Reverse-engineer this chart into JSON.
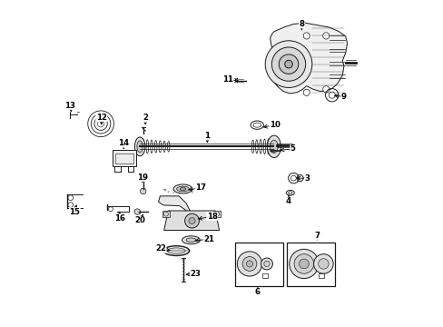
{
  "background_color": "#ffffff",
  "line_color": "#1a1a1a",
  "figsize": [
    4.89,
    3.6
  ],
  "dpi": 100,
  "labels": [
    {
      "id": "1",
      "pt": [
        0.455,
        0.445
      ],
      "txt": [
        0.455,
        0.415
      ]
    },
    {
      "id": "2",
      "pt": [
        0.265,
        0.39
      ],
      "txt": [
        0.265,
        0.36
      ]
    },
    {
      "id": "3",
      "pt": [
        0.72,
        0.545
      ],
      "txt": [
        0.762,
        0.545
      ]
    },
    {
      "id": "4",
      "pt": [
        0.705,
        0.588
      ],
      "txt": [
        0.705,
        0.616
      ]
    },
    {
      "id": "5",
      "pt": [
        0.67,
        0.46
      ],
      "txt": [
        0.718,
        0.455
      ]
    },
    {
      "id": "6",
      "pt": [
        0.61,
        0.87
      ],
      "txt": [
        0.61,
        0.895
      ]
    },
    {
      "id": "7",
      "pt": [
        0.792,
        0.745
      ],
      "txt": [
        0.792,
        0.722
      ]
    },
    {
      "id": "8",
      "pt": [
        0.745,
        0.1
      ],
      "txt": [
        0.745,
        0.072
      ]
    },
    {
      "id": "9",
      "pt": [
        0.836,
        0.29
      ],
      "txt": [
        0.875,
        0.295
      ]
    },
    {
      "id": "10",
      "pt": [
        0.618,
        0.39
      ],
      "txt": [
        0.662,
        0.382
      ]
    },
    {
      "id": "11",
      "pt": [
        0.56,
        0.248
      ],
      "txt": [
        0.518,
        0.242
      ]
    },
    {
      "id": "12",
      "pt": [
        0.13,
        0.39
      ],
      "txt": [
        0.13,
        0.358
      ]
    },
    {
      "id": "13",
      "pt": [
        0.04,
        0.35
      ],
      "txt": [
        0.033,
        0.322
      ]
    },
    {
      "id": "14",
      "pt": [
        0.198,
        0.465
      ],
      "txt": [
        0.198,
        0.438
      ]
    },
    {
      "id": "15",
      "pt": [
        0.055,
        0.618
      ],
      "txt": [
        0.048,
        0.648
      ]
    },
    {
      "id": "16",
      "pt": [
        0.185,
        0.638
      ],
      "txt": [
        0.185,
        0.668
      ]
    },
    {
      "id": "17",
      "pt": [
        0.388,
        0.582
      ],
      "txt": [
        0.435,
        0.575
      ]
    },
    {
      "id": "18",
      "pt": [
        0.418,
        0.672
      ],
      "txt": [
        0.47,
        0.662
      ]
    },
    {
      "id": "19",
      "pt": [
        0.255,
        0.568
      ],
      "txt": [
        0.255,
        0.542
      ]
    },
    {
      "id": "20",
      "pt": [
        0.262,
        0.648
      ],
      "txt": [
        0.248,
        0.675
      ]
    },
    {
      "id": "21",
      "pt": [
        0.408,
        0.738
      ],
      "txt": [
        0.46,
        0.732
      ]
    },
    {
      "id": "22",
      "pt": [
        0.35,
        0.768
      ],
      "txt": [
        0.312,
        0.762
      ]
    },
    {
      "id": "23",
      "pt": [
        0.38,
        0.842
      ],
      "txt": [
        0.42,
        0.838
      ]
    }
  ]
}
